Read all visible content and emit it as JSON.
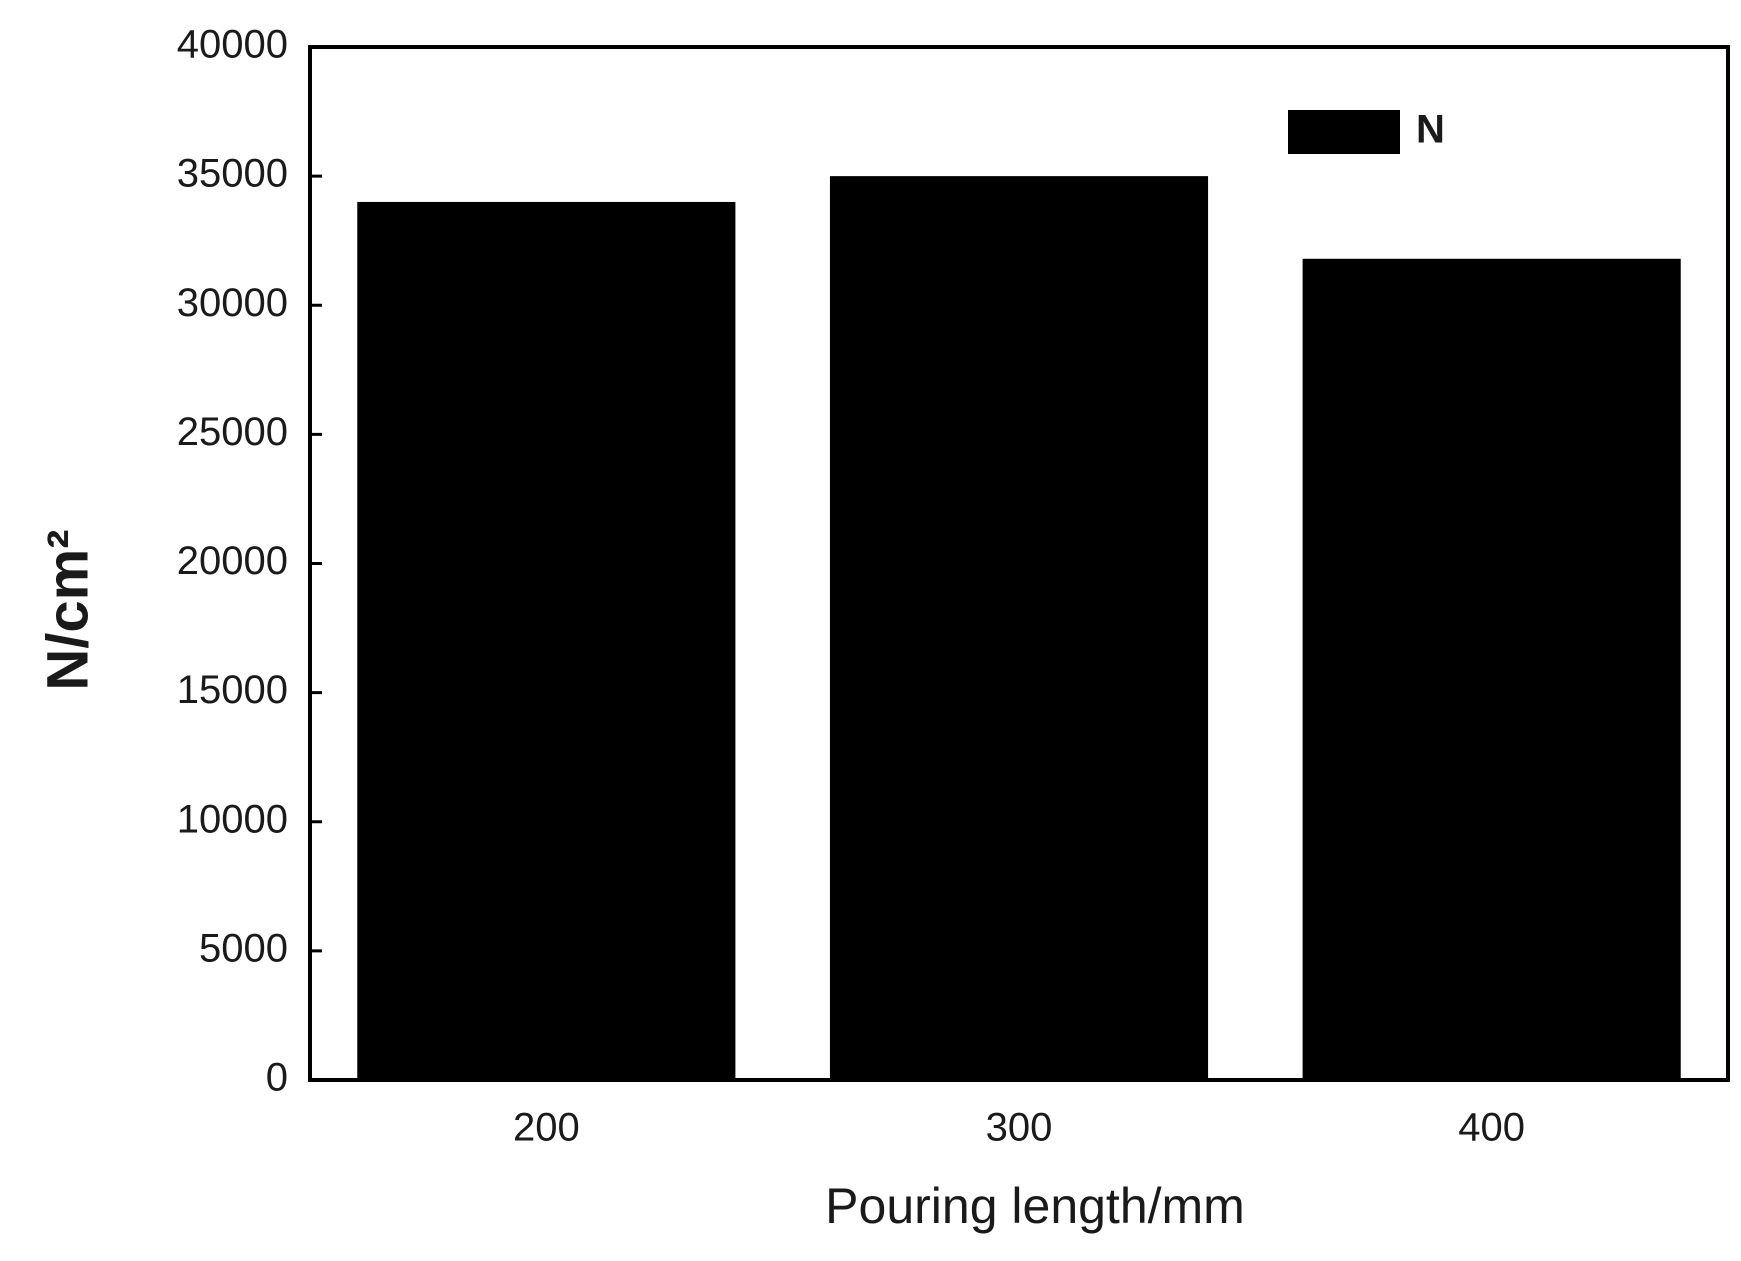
{
  "chart_data": {
    "type": "bar",
    "categories": [
      "200",
      "300",
      "400"
    ],
    "series": [
      {
        "name": "N",
        "color": "#000000",
        "values": [
          34000,
          35000,
          31800
        ]
      }
    ],
    "xlabel": "Pouring length/mm",
    "ylabel": "N/cm²",
    "ylim": [
      0,
      40000
    ],
    "yticks": [
      0,
      5000,
      10000,
      15000,
      20000,
      25000,
      30000,
      35000,
      40000
    ],
    "legend": "upper right",
    "grid": false
  }
}
